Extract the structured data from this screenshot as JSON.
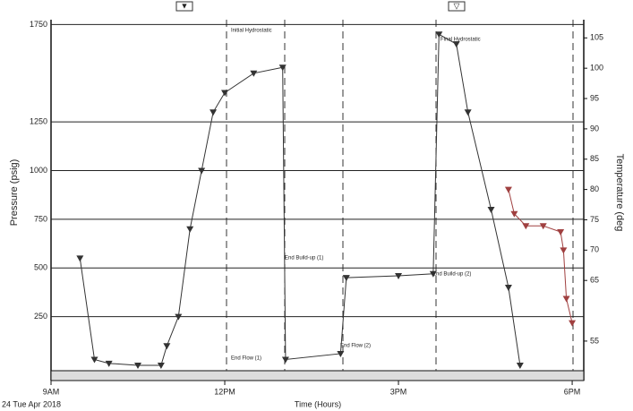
{
  "chart_data": {
    "type": "line",
    "x_label": "Time (Hours)",
    "y_label": "Pressure (psig)",
    "y2_label": "Temperature (deg",
    "date_label": "24 Tue Apr 2018",
    "annotations": [
      "Initial Hydrostatic",
      "Final Hydrostatic",
      "End Build-up (1)",
      "End Build-up (2)",
      "End Flow (1)",
      "End Flow (2)"
    ],
    "xlim": [
      9,
      18.2
    ],
    "xticks": [
      {
        "value": 9,
        "label": "9AM"
      },
      {
        "value": 12,
        "label": "12PM"
      },
      {
        "value": 15,
        "label": "3PM"
      },
      {
        "value": 18,
        "label": "6PM"
      }
    ],
    "ylim": [
      0,
      1775
    ],
    "yticks": [
      250,
      500,
      750,
      1000,
      1250,
      1750
    ],
    "y2lim": [
      51,
      108
    ],
    "y2ticks": [
      55,
      65,
      70,
      75,
      80,
      85,
      90,
      95,
      100,
      105
    ],
    "grid": true,
    "series": [
      {
        "color": "#333333",
        "values": [
          550,
          30,
          10,
          0,
          0,
          100,
          250,
          700,
          1000,
          1300,
          1400,
          1500,
          1530,
          30,
          60,
          450,
          460,
          470,
          1700,
          1650,
          1300,
          800,
          400,
          0
        ],
        "x": [
          9.5,
          9.75,
          10.0,
          10.5,
          10.9,
          11.0,
          11.2,
          11.4,
          11.6,
          11.8,
          12.0,
          12.5,
          13.0,
          13.05,
          14.0,
          14.1,
          15.0,
          15.6,
          15.7,
          16.0,
          16.2,
          16.6,
          16.9,
          17.1
        ]
      },
      {
        "color": "#a04040",
        "axis": "y2",
        "values": [
          80,
          76,
          74,
          74,
          73,
          70,
          62,
          58
        ],
        "x": [
          16.9,
          17.0,
          17.2,
          17.5,
          17.8,
          17.85,
          17.9,
          18.0
        ]
      }
    ]
  }
}
